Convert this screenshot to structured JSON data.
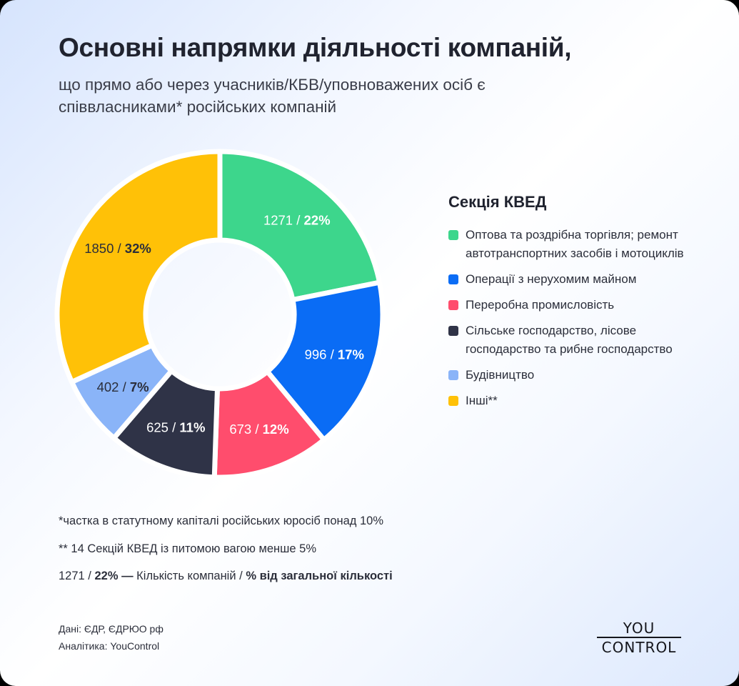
{
  "title": "Основні напрямки діяльності компаній,",
  "subtitle": "що прямо або через учасників/КБВ/уповноважених осіб є співвласниками* російських компаній",
  "chart_data": {
    "type": "pie",
    "donut": true,
    "legend_title": "Секція КВЕД",
    "legend_position": "right",
    "slices": [
      {
        "name": "Оптова та роздрібна торгівля; ремонт автотранспортних засобів і мотоциклів",
        "count": 1271,
        "percent": 22,
        "count_label": "1271",
        "percent_label": "22%",
        "color": "#3dd68c",
        "text_color": "#ffffff"
      },
      {
        "name": "Операції з нерухомим майном",
        "count": 996,
        "percent": 17,
        "count_label": "996",
        "percent_label": "17%",
        "color": "#0a6cf5",
        "text_color": "#ffffff"
      },
      {
        "name": "Переробна промисловість",
        "count": 673,
        "percent": 12,
        "count_label": "673",
        "percent_label": "12%",
        "color": "#ff4d6d",
        "text_color": "#ffffff"
      },
      {
        "name": "Сільське господарство, лісове господарство та рибне господарство",
        "count": 625,
        "percent": 11,
        "count_label": "625",
        "percent_label": "11%",
        "color": "#2f3347",
        "text_color": "#ffffff"
      },
      {
        "name": "Будівництво",
        "count": 402,
        "percent": 7,
        "count_label": "402",
        "percent_label": "7%",
        "color": "#8ab4f8",
        "text_color": "#2b2e3a"
      },
      {
        "name": "Інші**",
        "count": 1850,
        "percent": 32,
        "count_label": "1850",
        "percent_label": "32%",
        "color": "#ffc107",
        "text_color": "#2b2e3a"
      }
    ]
  },
  "footnotes": {
    "note1": "*частка в статутному капіталі російських юросіб понад 10%",
    "note2": "** 14 Секцій КВЕД із питомою вагою менше 5%",
    "key_count": "1271 / ",
    "key_percent": "22% —",
    "key_text": " Кількість компаній / ",
    "key_bold": "% від загальної кількості"
  },
  "source": {
    "data": "Дані: ЄДР, ЄДРЮО рф",
    "analytics": "Аналітика: YouControl"
  },
  "logo": {
    "line1": "YOU",
    "line2": "CONTROL"
  }
}
